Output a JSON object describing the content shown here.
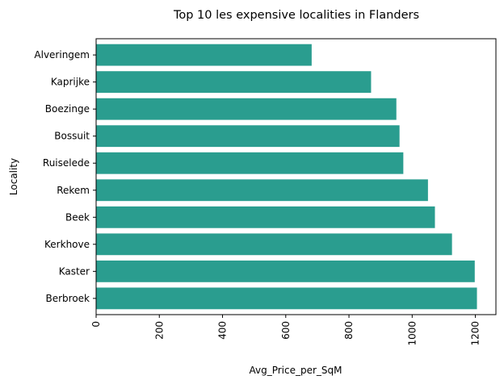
{
  "chart_data": {
    "type": "bar",
    "orientation": "horizontal",
    "title": "Top 10 les expensive localities in Flanders",
    "xlabel": "Avg_Price_per_SqM",
    "ylabel": "Locality",
    "categories": [
      "Alveringem",
      "Kaprijke",
      "Boezinge",
      "Bossuit",
      "Ruiselede",
      "Rekem",
      "Beek",
      "Kerkhove",
      "Kaster",
      "Berbroek"
    ],
    "values": [
      682,
      870,
      950,
      960,
      972,
      1050,
      1072,
      1126,
      1198,
      1205
    ],
    "xlim": [
      0,
      1265
    ],
    "xticks": [
      "0",
      "200",
      "400",
      "600",
      "800",
      "1000",
      "1200"
    ],
    "xtick_rotation": 90,
    "bar_color": "#2a9d8f",
    "grid": false,
    "legend": "none"
  }
}
